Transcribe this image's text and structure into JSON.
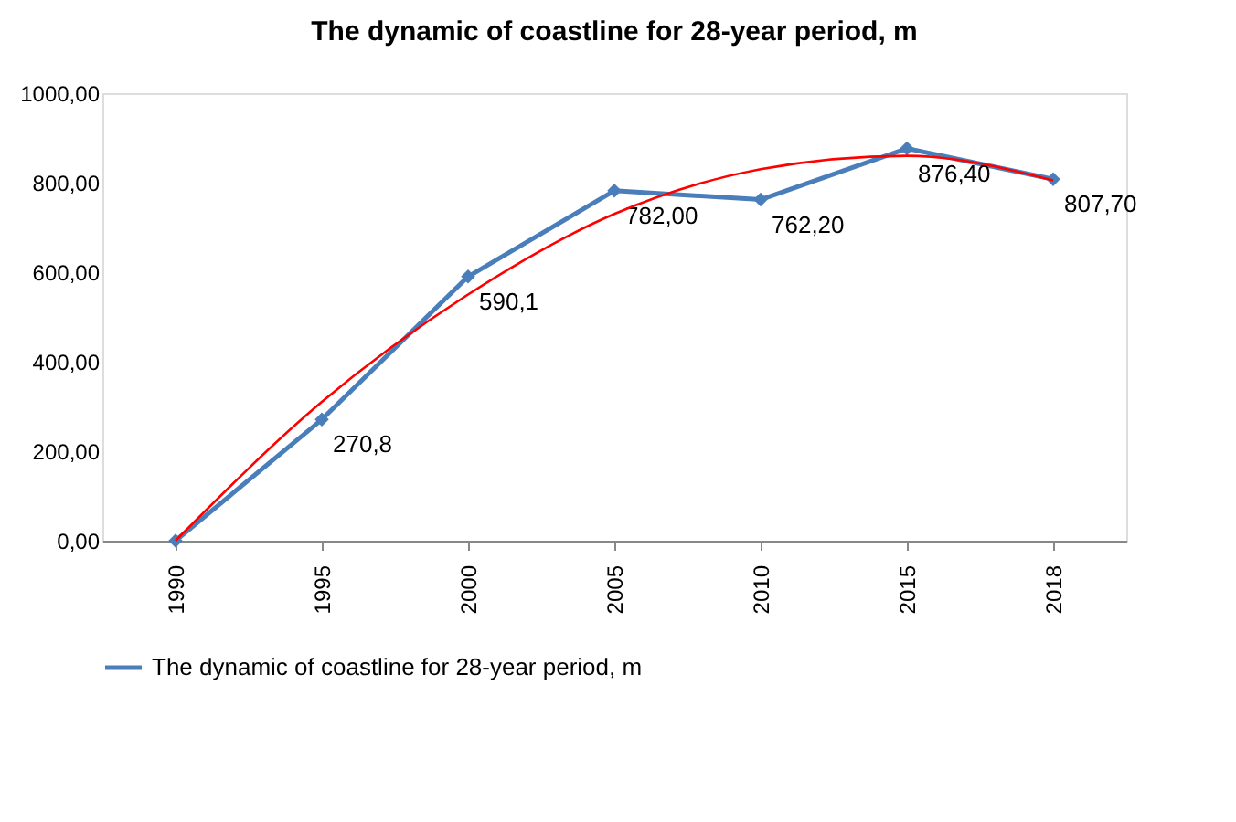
{
  "chart_data": {
    "type": "line",
    "title": "The dynamic of coastline for 28-year period, m",
    "categories": [
      "1990",
      "1995",
      "2000",
      "2005",
      "2010",
      "2015",
      "2018"
    ],
    "series": [
      {
        "name": "The dynamic of coastline for 28-year period, m",
        "color": "#4a7ebb",
        "marker": "diamond",
        "values": [
          0,
          270.8,
          590.1,
          782,
          762.2,
          876.4,
          807.7
        ],
        "value_labels": [
          null,
          "270,8",
          "590,1",
          "782,00",
          "762,20",
          "876,40",
          "807,70"
        ]
      },
      {
        "type": "line",
        "color": "#ff0000",
        "marker": "none",
        "values": [
          0,
          310,
          550,
          730,
          830,
          860,
          805
        ]
      }
    ],
    "ylim": [
      0,
      1000
    ],
    "yticks": [
      {
        "value": 0,
        "label": "0,00"
      },
      {
        "value": 200,
        "label": "200,00"
      },
      {
        "value": 400,
        "label": "400,00"
      },
      {
        "value": 600,
        "label": "600,00"
      },
      {
        "value": 800,
        "label": "800,00"
      },
      {
        "value": 1000,
        "label": "1000,00"
      }
    ],
    "grid": false,
    "legend": "bottom",
    "line_style": "solid"
  }
}
